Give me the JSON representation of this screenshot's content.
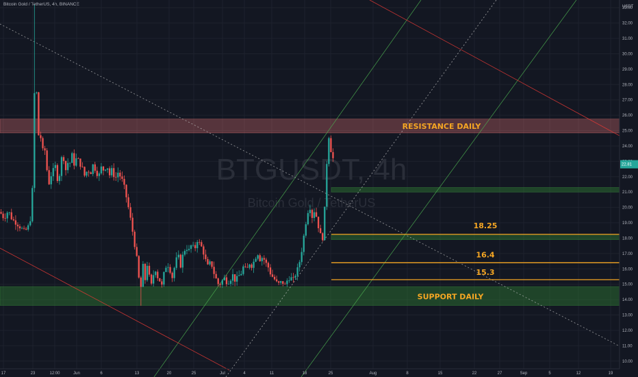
{
  "header": {
    "symbol_info": "Bitcoin Gold / TetherUS, 4h, BINANCE"
  },
  "watermark": {
    "ticker": "BTGUSDT, 4h",
    "description": "Bitcoin Gold / TetherUS"
  },
  "colors": {
    "background": "#131722",
    "up": "#26a69a",
    "down": "#ef5350",
    "resistance_zone": "#e57373",
    "support_zone": "#2e7d32",
    "level_line": "#f5a623",
    "annotation_text": "#f5a623",
    "channel_green": "#4caf50",
    "trend_red": "#e53935"
  },
  "chart_data": {
    "type": "candlestick",
    "symbol": "BTGUSDT",
    "timeframe": "4h",
    "exchange": "BINANCE",
    "y_unit": "USDT",
    "ylim": [
      9.5,
      33.5
    ],
    "y_ticks": [
      "10.00",
      "11.00",
      "12.00",
      "13.00",
      "14.00",
      "15.00",
      "16.00",
      "17.00",
      "18.00",
      "19.00",
      "20.00",
      "21.00",
      "22.00",
      "23.00",
      "24.00",
      "25.00",
      "26.00",
      "27.00",
      "28.00",
      "29.00",
      "30.00",
      "31.00",
      "32.00",
      "33.00"
    ],
    "x_ticks": [
      "17",
      "23",
      "12:00",
      "Jun",
      "6",
      "13",
      "20",
      "25",
      "Jul",
      "4",
      "11",
      "18",
      "25",
      "Aug",
      "8",
      "15",
      "22",
      "27",
      "Sep",
      "5",
      "12",
      "19"
    ],
    "price_path": [
      [
        0,
        19.7
      ],
      [
        6,
        19.3
      ],
      [
        12,
        19.8
      ],
      [
        18,
        19.2
      ],
      [
        24,
        19.0
      ],
      [
        30,
        18.7
      ],
      [
        36,
        18.4
      ],
      [
        42,
        18.8
      ],
      [
        46,
        19.6
      ],
      [
        48,
        22.0
      ],
      [
        50,
        27.0
      ],
      [
        52,
        29.5
      ],
      [
        54,
        26.5
      ],
      [
        56,
        24.5
      ],
      [
        58,
        25.5
      ],
      [
        60,
        24.2
      ],
      [
        62,
        23.4
      ],
      [
        64,
        24.5
      ],
      [
        66,
        23.5
      ],
      [
        68,
        22.6
      ],
      [
        70,
        22.1
      ],
      [
        72,
        21.5
      ],
      [
        74,
        22.4
      ],
      [
        76,
        21.6
      ],
      [
        78,
        22.5
      ],
      [
        80,
        23.0
      ],
      [
        82,
        22.2
      ],
      [
        85,
        21.7
      ],
      [
        88,
        22.4
      ],
      [
        91,
        23.6
      ],
      [
        94,
        23.0
      ],
      [
        97,
        22.2
      ],
      [
        100,
        23.2
      ],
      [
        103,
        22.8
      ],
      [
        106,
        23.6
      ],
      [
        109,
        22.6
      ],
      [
        112,
        23.3
      ],
      [
        116,
        22.9
      ],
      [
        120,
        22.6
      ],
      [
        124,
        22.0
      ],
      [
        128,
        22.5
      ],
      [
        132,
        22.2
      ],
      [
        136,
        22.8
      ],
      [
        140,
        22.4
      ],
      [
        144,
        22.0
      ],
      [
        148,
        22.6
      ],
      [
        152,
        22.4
      ],
      [
        156,
        22.8
      ],
      [
        160,
        22.1
      ],
      [
        164,
        22.5
      ],
      [
        168,
        21.8
      ],
      [
        172,
        22.3
      ],
      [
        176,
        22.0
      ],
      [
        180,
        21.6
      ],
      [
        184,
        20.8
      ],
      [
        188,
        19.9
      ],
      [
        192,
        18.9
      ],
      [
        196,
        17.8
      ],
      [
        200,
        16.6
      ],
      [
        203,
        15.3
      ],
      [
        206,
        14.8
      ],
      [
        209,
        16.2
      ],
      [
        212,
        15.3
      ],
      [
        215,
        16.3
      ],
      [
        218,
        15.5
      ],
      [
        221,
        14.9
      ],
      [
        224,
        15.6
      ],
      [
        227,
        16.0
      ],
      [
        230,
        15.5
      ],
      [
        233,
        15.3
      ],
      [
        236,
        14.8
      ],
      [
        240,
        15.8
      ],
      [
        244,
        16.4
      ],
      [
        248,
        16.0
      ],
      [
        252,
        15.4
      ],
      [
        256,
        16.4
      ],
      [
        260,
        16.9
      ],
      [
        264,
        16.2
      ],
      [
        268,
        17.1
      ],
      [
        272,
        17.4
      ],
      [
        276,
        17.2
      ],
      [
        280,
        17.6
      ],
      [
        284,
        17.2
      ],
      [
        288,
        17.9
      ],
      [
        292,
        17.6
      ],
      [
        296,
        17.3
      ],
      [
        300,
        16.6
      ],
      [
        304,
        16.1
      ],
      [
        308,
        16.5
      ],
      [
        312,
        15.8
      ],
      [
        316,
        15.3
      ],
      [
        320,
        14.9
      ],
      [
        324,
        15.2
      ],
      [
        328,
        15.4
      ],
      [
        332,
        15.1
      ],
      [
        336,
        15.3
      ],
      [
        340,
        15.6
      ],
      [
        344,
        15.2
      ],
      [
        348,
        15.5
      ],
      [
        352,
        15.7
      ],
      [
        356,
        16.2
      ],
      [
        360,
        15.8
      ],
      [
        364,
        16.4
      ],
      [
        368,
        16.2
      ],
      [
        372,
        16.6
      ],
      [
        376,
        17.1
      ],
      [
        380,
        16.6
      ],
      [
        384,
        16.8
      ],
      [
        388,
        16.4
      ],
      [
        392,
        16.1
      ],
      [
        396,
        15.6
      ],
      [
        400,
        15.4
      ],
      [
        404,
        15.1
      ],
      [
        408,
        15.0
      ],
      [
        412,
        15.2
      ],
      [
        416,
        14.9
      ],
      [
        420,
        15.3
      ],
      [
        424,
        15.5
      ],
      [
        428,
        15.2
      ],
      [
        432,
        15.7
      ],
      [
        436,
        16.1
      ],
      [
        440,
        17.0
      ],
      [
        444,
        18.2
      ],
      [
        448,
        19.4
      ],
      [
        452,
        20.2
      ],
      [
        456,
        19.4
      ],
      [
        460,
        19.9
      ],
      [
        464,
        19.0
      ],
      [
        468,
        18.2
      ],
      [
        472,
        18.0
      ],
      [
        474,
        19.6
      ],
      [
        476,
        21.6
      ],
      [
        478,
        23.6
      ],
      [
        480,
        25.0
      ],
      [
        482,
        23.1
      ],
      [
        484,
        24.0
      ],
      [
        486,
        23.3
      ],
      [
        488,
        22.8
      ]
    ],
    "last_price_label": "22.81",
    "zones": [
      {
        "name": "resistance-zone",
        "low": 24.85,
        "high": 25.75,
        "label": "RESISTANCE DAILY"
      },
      {
        "name": "support-zone",
        "low": 13.62,
        "high": 14.85,
        "label": "SUPPORT DAILY"
      },
      {
        "name": "demand-zone",
        "low": 21.0,
        "high": 21.3,
        "label": ""
      },
      {
        "name": "retest-zone",
        "low": 17.9,
        "high": 18.25,
        "label": ""
      }
    ],
    "levels": [
      {
        "value": 18.25,
        "label": "18.25"
      },
      {
        "value": 16.4,
        "label": "16.4"
      },
      {
        "value": 15.3,
        "label": "15.3"
      }
    ]
  }
}
